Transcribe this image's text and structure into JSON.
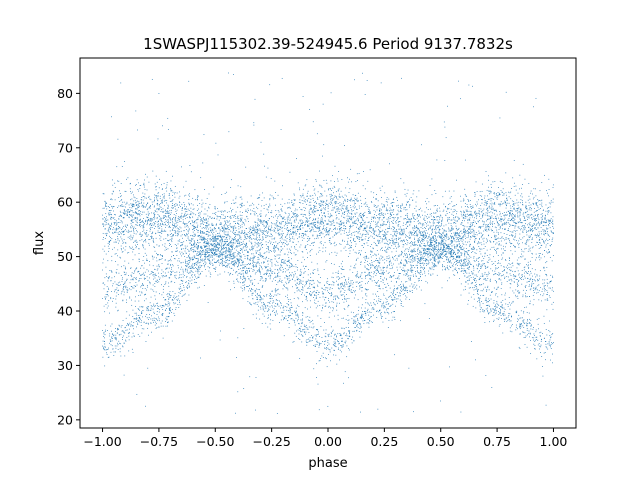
{
  "chart_data": {
    "type": "scatter",
    "title": "1SWASPJ115302.39-524945.6 Period 9137.7832s",
    "xlabel": "phase",
    "ylabel": "flux",
    "xlim": [
      -1.1,
      1.1
    ],
    "ylim": [
      18.5,
      86.5
    ],
    "xticks": [
      -1.0,
      -0.75,
      -0.5,
      -0.25,
      0.0,
      0.25,
      0.5,
      0.75,
      1.0
    ],
    "xtick_labels": [
      "−1.00",
      "−0.75",
      "−0.50",
      "−0.25",
      "0.00",
      "0.25",
      "0.50",
      "0.75",
      "1.00"
    ],
    "yticks": [
      20,
      30,
      40,
      50,
      60,
      70,
      80
    ],
    "ytick_labels": [
      "20",
      "30",
      "40",
      "50",
      "60",
      "70",
      "80"
    ],
    "grid": false,
    "point_color": "#1f77b4",
    "series": [
      {
        "bands": [
          {
            "phase": [
              -1.0,
              -0.75,
              -0.5,
              -0.25,
              0.0,
              0.25,
              0.5,
              0.75,
              1.0
            ],
            "flux": [
              56,
              57.5,
              54,
              55,
              57.5,
              55.5,
              54,
              57,
              56
            ]
          },
          {
            "phase": [
              -1.0,
              -0.75,
              -0.5,
              -0.25,
              0.0,
              0.25,
              0.5,
              0.75,
              1.0
            ],
            "flux": [
              34,
              40,
              51,
              41,
              34,
              41,
              51,
              40,
              34
            ]
          },
          {
            "phase": [
              -1.0,
              -0.75,
              -0.5,
              -0.25,
              0.0,
              0.25,
              0.5,
              0.75,
              1.0
            ],
            "flux": [
              44.5,
              47,
              51,
              47.5,
              43.5,
              47.5,
              51,
              47,
              44.5
            ]
          }
        ]
      }
    ]
  }
}
